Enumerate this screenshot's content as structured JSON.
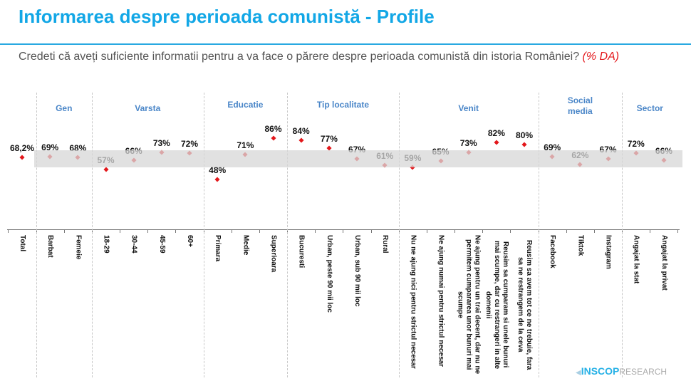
{
  "title": "Informarea despre perioada comunistă - Profile",
  "subtitle": "Credeti că aveți suficiente informatii pentru a va face o părere despre perioada comunistă din istoria României?",
  "subtitle_highlight": "(% DA)",
  "logo": {
    "bold": "INSCOP",
    "light": "RESEARCH"
  },
  "colors": {
    "title": "#12a7e6",
    "marker": "#e3171b",
    "group": "#4a86c8",
    "band": "#d7d7d7"
  },
  "chart_data": {
    "type": "scatter",
    "title": "",
    "groups": [
      {
        "label": "Gen",
        "members": [
          "Barbat",
          "Femeie"
        ]
      },
      {
        "label": "Varsta",
        "members": [
          "18-29",
          "30-44",
          "45-59",
          "60+"
        ]
      },
      {
        "label": "Educatie",
        "members": [
          "Primara",
          "Medie",
          "Superioara"
        ]
      },
      {
        "label": "Tip localitate",
        "members": [
          "Bucuresti",
          "Urban, peste 90 mii loc",
          "Urban, sub 90 mii loc",
          "Rural"
        ]
      },
      {
        "label": "Venit",
        "members": [
          "Nu ne ajung nici pentru strictul necesar",
          "Ne ajung numai pentru strictul necesar",
          "Ne ajung pentru un trai decent, dar nu ne permitem cumpararea unor bunuri mai scumpe",
          "Reusim sa cumparam si unele bunuri mai scumpe, dar cu restrangeri in alte domenii",
          "Reusim sa avem tot ce ne trebuie, fara sa ne restrangem de la ceva"
        ]
      },
      {
        "label": "Social media",
        "members": [
          "Facebook",
          "Tiktok",
          "Instagram"
        ]
      },
      {
        "label": "Sector",
        "members": [
          "Angajat la stat",
          "Angajat la privat"
        ]
      }
    ],
    "categories": [
      "Total",
      "Barbat",
      "Femeie",
      "18-29",
      "30-44",
      "45-59",
      "60+",
      "Primara",
      "Medie",
      "Superioara",
      "Bucuresti",
      "Urban, peste 90 mii loc",
      "Urban, sub 90 mii loc",
      "Rural",
      "Nu ne ajung nici pentru strictul necesar",
      "Ne ajung numai pentru strictul necesar",
      "Ne ajung pentru un trai decent, dar nu ne permitem cumpararea unor bunuri mai scumpe",
      "Reusim sa cumparam si unele bunuri mai scumpe, dar cu restrangeri in alte domenii",
      "Reusim sa avem tot ce ne trebuie, fara sa ne restrangem de la ceva",
      "Facebook",
      "Tiktok",
      "Instagram",
      "Angajat la stat",
      "Angajat la privat"
    ],
    "values": [
      68.2,
      69,
      68,
      57,
      66,
      73,
      72,
      48,
      71,
      86,
      84,
      77,
      67,
      61,
      59,
      65,
      73,
      82,
      80,
      69,
      62,
      67,
      72,
      66
    ],
    "value_labels": [
      "68,2%",
      "69%",
      "68%",
      "57%",
      "66%",
      "73%",
      "72%",
      "48%",
      "71%",
      "86%",
      "84%",
      "77%",
      "67%",
      "61%",
      "59%",
      "65%",
      "73%",
      "82%",
      "80%",
      "69%",
      "62%",
      "67%",
      "72%",
      "66%"
    ],
    "grid": false,
    "legend": "none"
  }
}
